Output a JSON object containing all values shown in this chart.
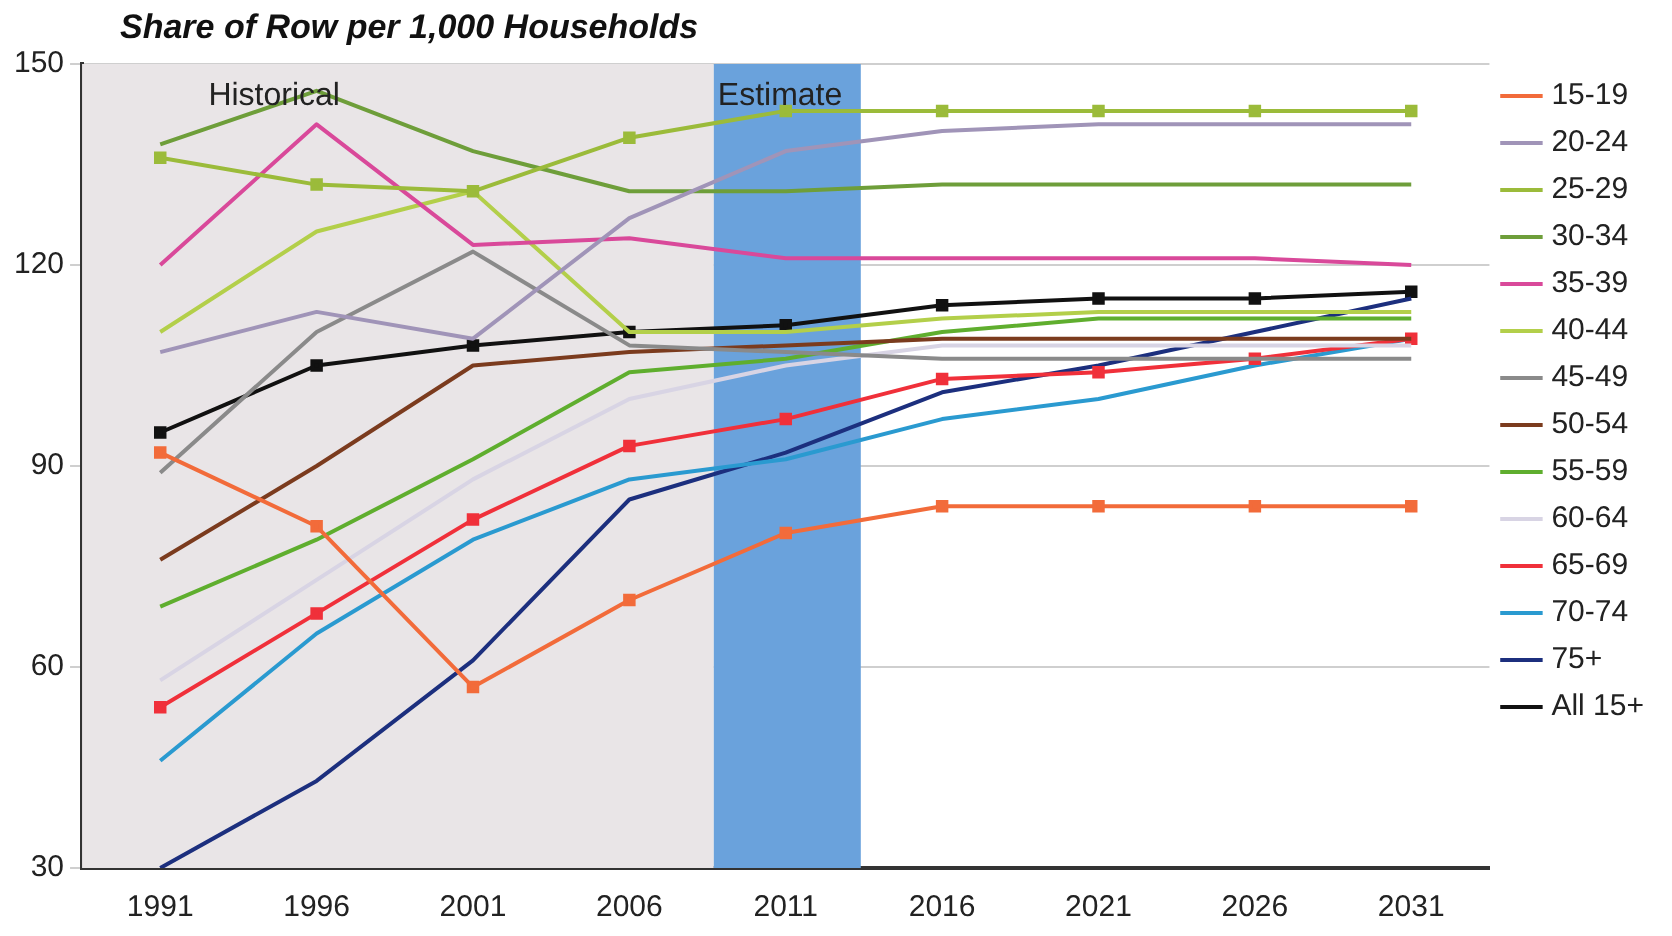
{
  "chart_data": {
    "type": "line",
    "title": "Share of Row per 1,000 Households",
    "x": [
      1991,
      1996,
      2001,
      2006,
      2011,
      2016,
      2021,
      2026,
      2031
    ],
    "xlim": [
      1988.5,
      2033.5
    ],
    "xticks": [
      1991,
      1996,
      2001,
      2006,
      2011,
      2016,
      2021,
      2026,
      2031
    ],
    "ylim": [
      30,
      150
    ],
    "yticks": [
      30,
      60,
      90,
      120,
      150
    ],
    "grid": "y",
    "legend": "right",
    "bands": [
      {
        "axis": "x",
        "from": 1988.5,
        "to": 2008.7,
        "label": "Historical",
        "color": "#e9e5e7"
      },
      {
        "axis": "x",
        "from": 2008.7,
        "to": 2013.4,
        "label": "Estimate",
        "color": "#6aa2dc"
      }
    ],
    "series": [
      {
        "name": "15-19",
        "color": "#f26b3a",
        "marker": "square",
        "values": [
          92,
          81,
          57,
          70,
          80,
          84,
          84,
          84,
          84
        ]
      },
      {
        "name": "20-24",
        "color": "#a094b8",
        "marker": "none",
        "values": [
          107,
          113,
          109,
          127,
          137,
          140,
          141,
          141,
          141
        ]
      },
      {
        "name": "25-29",
        "color": "#9bbb3a",
        "marker": "square",
        "values": [
          136,
          132,
          131,
          139,
          143,
          143,
          143,
          143,
          143
        ]
      },
      {
        "name": "30-34",
        "color": "#6e9e3a",
        "marker": "none",
        "values": [
          138,
          146,
          137,
          131,
          131,
          132,
          132,
          132,
          132
        ]
      },
      {
        "name": "35-39",
        "color": "#d9499a",
        "marker": "none",
        "values": [
          120,
          141,
          123,
          124,
          121,
          121,
          121,
          121,
          120
        ]
      },
      {
        "name": "40-44",
        "color": "#b3cf4a",
        "marker": "none",
        "values": [
          110,
          125,
          131,
          110,
          110,
          112,
          113,
          113,
          113
        ]
      },
      {
        "name": "45-49",
        "color": "#8a8a8a",
        "marker": "none",
        "values": [
          89,
          110,
          122,
          108,
          107,
          106,
          106,
          106,
          106
        ]
      },
      {
        "name": "50-54",
        "color": "#7b3b1e",
        "marker": "none",
        "values": [
          76,
          90,
          105,
          107,
          108,
          109,
          109,
          109,
          109
        ]
      },
      {
        "name": "55-59",
        "color": "#5fae2e",
        "marker": "none",
        "values": [
          69,
          79,
          91,
          104,
          106,
          110,
          112,
          112,
          112
        ]
      },
      {
        "name": "60-64",
        "color": "#d8d4e4",
        "marker": "none",
        "values": [
          58,
          73,
          88,
          100,
          105,
          108,
          108,
          108,
          108
        ]
      },
      {
        "name": "65-69",
        "color": "#f0303a",
        "marker": "square",
        "values": [
          54,
          68,
          82,
          93,
          97,
          103,
          104,
          106,
          109
        ]
      },
      {
        "name": "70-74",
        "color": "#2a9ad0",
        "marker": "none",
        "values": [
          46,
          65,
          79,
          88,
          91,
          97,
          100,
          105,
          109
        ]
      },
      {
        "name": "75+",
        "color": "#1c2f7e",
        "marker": "none",
        "values": [
          30,
          43,
          61,
          85,
          92,
          101,
          105,
          110,
          115
        ]
      },
      {
        "name": "All 15+",
        "color": "#111111",
        "marker": "square",
        "values": [
          95,
          105,
          108,
          110,
          111,
          114,
          115,
          115,
          116
        ]
      }
    ]
  }
}
